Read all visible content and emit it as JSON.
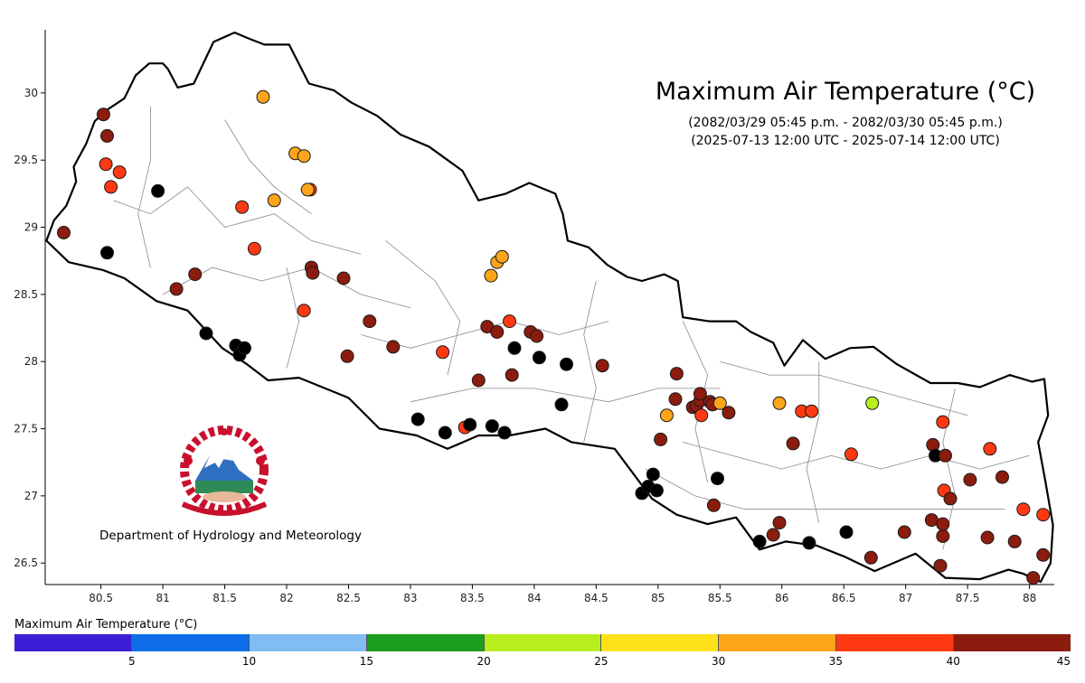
{
  "title": "Maximum Air Temperature (°C)",
  "subtitle_nepali": "(2082/03/29 05:45 p.m. - 2082/03/30 05:45 p.m.)",
  "subtitle_utc": "(2025-07-13 12:00 UTC - 2025-07-14 12:00 UTC)",
  "department": "Department of Hydrology and Meteorology",
  "legend": {
    "title": "Maximum Air Temperature (°C)",
    "ticks": [
      "5",
      "10",
      "15",
      "20",
      "25",
      "30",
      "35",
      "40",
      "45"
    ],
    "colors": [
      "#3b1fd6",
      "#0d6ee8",
      "#7fbdf2",
      "#1e9e1e",
      "#b9ee1e",
      "#ffe11a",
      "#ffa51a",
      "#ff3a12",
      "#8b1c0e"
    ]
  },
  "axes": {
    "x_ticks": [
      80.5,
      81,
      81.5,
      82,
      82.5,
      83,
      83.5,
      84,
      84.5,
      85,
      85.5,
      86,
      86.5,
      87,
      87.5,
      88
    ],
    "y_ticks": [
      26.5,
      27,
      27.5,
      28,
      28.5,
      29,
      29.5,
      30
    ],
    "xlim": [
      80.05,
      88.2
    ],
    "ylim": [
      26.34,
      30.47
    ]
  },
  "stations": [
    {
      "lon": 80.52,
      "lat": 29.84,
      "c": 8
    },
    {
      "lon": 80.55,
      "lat": 29.68,
      "c": 8
    },
    {
      "lon": 80.54,
      "lat": 29.47,
      "c": 7
    },
    {
      "lon": 80.58,
      "lat": 29.3,
      "c": 7
    },
    {
      "lon": 80.65,
      "lat": 29.41,
      "c": 7
    },
    {
      "lon": 80.2,
      "lat": 28.96,
      "c": 8
    },
    {
      "lon": 80.55,
      "lat": 28.81,
      "c": 9
    },
    {
      "lon": 80.96,
      "lat": 29.27,
      "c": 9
    },
    {
      "lon": 81.11,
      "lat": 28.54,
      "c": 8
    },
    {
      "lon": 81.26,
      "lat": 28.65,
      "c": 8
    },
    {
      "lon": 81.35,
      "lat": 28.21,
      "c": 9
    },
    {
      "lon": 81.59,
      "lat": 28.12,
      "c": 9
    },
    {
      "lon": 81.62,
      "lat": 28.05,
      "c": 9
    },
    {
      "lon": 81.66,
      "lat": 28.1,
      "c": 9
    },
    {
      "lon": 81.64,
      "lat": 29.15,
      "c": 7
    },
    {
      "lon": 81.74,
      "lat": 28.84,
      "c": 7
    },
    {
      "lon": 81.81,
      "lat": 29.97,
      "c": 6
    },
    {
      "lon": 81.9,
      "lat": 29.2,
      "c": 6
    },
    {
      "lon": 82.07,
      "lat": 29.55,
      "c": 6
    },
    {
      "lon": 82.14,
      "lat": 29.53,
      "c": 6
    },
    {
      "lon": 82.19,
      "lat": 29.28,
      "c": 7
    },
    {
      "lon": 82.17,
      "lat": 29.28,
      "c": 6
    },
    {
      "lon": 82.14,
      "lat": 28.38,
      "c": 7
    },
    {
      "lon": 82.2,
      "lat": 28.7,
      "c": 8
    },
    {
      "lon": 82.21,
      "lat": 28.66,
      "c": 8
    },
    {
      "lon": 82.46,
      "lat": 28.62,
      "c": 8
    },
    {
      "lon": 82.49,
      "lat": 28.04,
      "c": 8
    },
    {
      "lon": 82.67,
      "lat": 28.3,
      "c": 8
    },
    {
      "lon": 82.86,
      "lat": 28.11,
      "c": 8
    },
    {
      "lon": 83.06,
      "lat": 27.57,
      "c": 9
    },
    {
      "lon": 83.28,
      "lat": 27.47,
      "c": 9
    },
    {
      "lon": 83.26,
      "lat": 28.07,
      "c": 7
    },
    {
      "lon": 83.44,
      "lat": 27.51,
      "c": 7
    },
    {
      "lon": 83.48,
      "lat": 27.53,
      "c": 9
    },
    {
      "lon": 83.55,
      "lat": 27.86,
      "c": 8
    },
    {
      "lon": 83.65,
      "lat": 28.64,
      "c": 6
    },
    {
      "lon": 83.7,
      "lat": 28.74,
      "c": 6
    },
    {
      "lon": 83.74,
      "lat": 28.78,
      "c": 6
    },
    {
      "lon": 83.62,
      "lat": 28.26,
      "c": 8
    },
    {
      "lon": 83.7,
      "lat": 28.22,
      "c": 8
    },
    {
      "lon": 83.66,
      "lat": 27.52,
      "c": 9
    },
    {
      "lon": 83.76,
      "lat": 27.47,
      "c": 9
    },
    {
      "lon": 83.8,
      "lat": 28.3,
      "c": 7
    },
    {
      "lon": 83.84,
      "lat": 28.1,
      "c": 9
    },
    {
      "lon": 83.82,
      "lat": 27.9,
      "c": 8
    },
    {
      "lon": 83.97,
      "lat": 28.22,
      "c": 8
    },
    {
      "lon": 84.02,
      "lat": 28.19,
      "c": 8
    },
    {
      "lon": 84.04,
      "lat": 28.03,
      "c": 9
    },
    {
      "lon": 84.22,
      "lat": 27.68,
      "c": 9
    },
    {
      "lon": 84.26,
      "lat": 27.98,
      "c": 9
    },
    {
      "lon": 84.55,
      "lat": 27.97,
      "c": 8
    },
    {
      "lon": 84.87,
      "lat": 27.02,
      "c": 9
    },
    {
      "lon": 84.92,
      "lat": 27.07,
      "c": 9
    },
    {
      "lon": 84.96,
      "lat": 27.16,
      "c": 9
    },
    {
      "lon": 84.99,
      "lat": 27.04,
      "c": 9
    },
    {
      "lon": 85.02,
      "lat": 27.42,
      "c": 8
    },
    {
      "lon": 85.07,
      "lat": 27.6,
      "c": 6
    },
    {
      "lon": 85.15,
      "lat": 27.91,
      "c": 8
    },
    {
      "lon": 85.14,
      "lat": 27.72,
      "c": 8
    },
    {
      "lon": 85.28,
      "lat": 27.66,
      "c": 8
    },
    {
      "lon": 85.31,
      "lat": 27.67,
      "c": 8
    },
    {
      "lon": 85.34,
      "lat": 27.71,
      "c": 8
    },
    {
      "lon": 85.35,
      "lat": 27.6,
      "c": 7
    },
    {
      "lon": 85.34,
      "lat": 27.76,
      "c": 8
    },
    {
      "lon": 85.42,
      "lat": 27.7,
      "c": 8
    },
    {
      "lon": 85.44,
      "lat": 27.68,
      "c": 8
    },
    {
      "lon": 85.5,
      "lat": 27.69,
      "c": 6
    },
    {
      "lon": 85.57,
      "lat": 27.62,
      "c": 8
    },
    {
      "lon": 85.48,
      "lat": 27.13,
      "c": 9
    },
    {
      "lon": 85.45,
      "lat": 26.93,
      "c": 8
    },
    {
      "lon": 85.82,
      "lat": 26.66,
      "c": 9
    },
    {
      "lon": 85.93,
      "lat": 26.71,
      "c": 8
    },
    {
      "lon": 85.98,
      "lat": 26.8,
      "c": 8
    },
    {
      "lon": 85.98,
      "lat": 27.69,
      "c": 6
    },
    {
      "lon": 86.09,
      "lat": 27.39,
      "c": 8
    },
    {
      "lon": 86.16,
      "lat": 27.63,
      "c": 7
    },
    {
      "lon": 86.24,
      "lat": 27.63,
      "c": 7
    },
    {
      "lon": 86.22,
      "lat": 26.65,
      "c": 9
    },
    {
      "lon": 86.52,
      "lat": 26.73,
      "c": 9
    },
    {
      "lon": 86.56,
      "lat": 27.31,
      "c": 7
    },
    {
      "lon": 86.72,
      "lat": 26.54,
      "c": 8
    },
    {
      "lon": 86.73,
      "lat": 27.69,
      "c": 4
    },
    {
      "lon": 86.99,
      "lat": 26.73,
      "c": 8
    },
    {
      "lon": 87.21,
      "lat": 26.82,
      "c": 8
    },
    {
      "lon": 87.22,
      "lat": 27.38,
      "c": 8
    },
    {
      "lon": 87.24,
      "lat": 27.3,
      "c": 9
    },
    {
      "lon": 87.28,
      "lat": 26.48,
      "c": 8
    },
    {
      "lon": 87.3,
      "lat": 26.7,
      "c": 8
    },
    {
      "lon": 87.3,
      "lat": 26.79,
      "c": 8
    },
    {
      "lon": 87.3,
      "lat": 27.55,
      "c": 7
    },
    {
      "lon": 87.31,
      "lat": 27.04,
      "c": 7
    },
    {
      "lon": 87.32,
      "lat": 27.3,
      "c": 8
    },
    {
      "lon": 87.36,
      "lat": 26.98,
      "c": 8
    },
    {
      "lon": 87.52,
      "lat": 27.12,
      "c": 8
    },
    {
      "lon": 87.68,
      "lat": 27.35,
      "c": 7
    },
    {
      "lon": 87.66,
      "lat": 26.69,
      "c": 8
    },
    {
      "lon": 87.78,
      "lat": 27.14,
      "c": 8
    },
    {
      "lon": 87.88,
      "lat": 26.66,
      "c": 8
    },
    {
      "lon": 87.95,
      "lat": 26.9,
      "c": 7
    },
    {
      "lon": 88.03,
      "lat": 26.39,
      "c": 8
    },
    {
      "lon": 88.11,
      "lat": 26.86,
      "c": 7
    },
    {
      "lon": 88.11,
      "lat": 26.56,
      "c": 8
    }
  ]
}
